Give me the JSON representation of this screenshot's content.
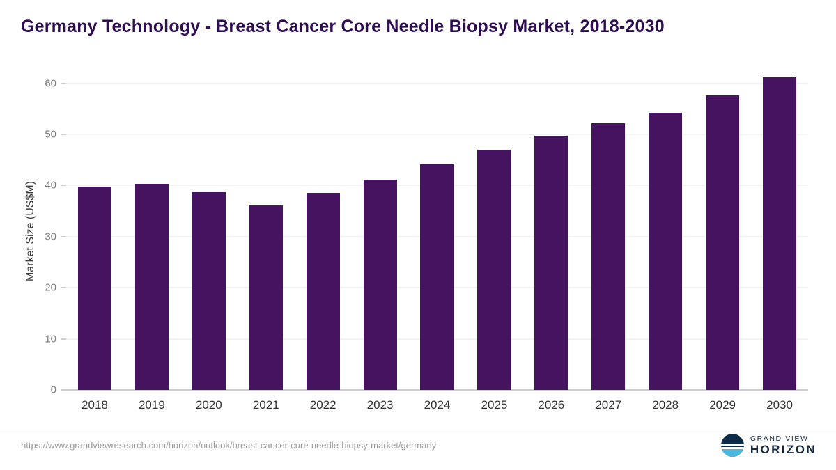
{
  "chart_data": {
    "type": "bar",
    "title": "Germany Technology - Breast Cancer Core Needle Biopsy Market, 2018-2030",
    "categories": [
      "2018",
      "2019",
      "2020",
      "2021",
      "2022",
      "2023",
      "2024",
      "2025",
      "2026",
      "2027",
      "2028",
      "2029",
      "2030"
    ],
    "values": [
      39.8,
      40.4,
      38.7,
      36.1,
      38.6,
      41.2,
      44.1,
      47.0,
      49.7,
      52.2,
      54.3,
      57.6,
      61.2
    ],
    "xlabel": "",
    "ylabel": "Market Size (US$M)",
    "yticks": [
      0,
      10,
      20,
      30,
      40,
      50,
      60
    ],
    "ylim": [
      0,
      62
    ],
    "grid": "horizontal",
    "legend": "none",
    "bar_color": "#451360",
    "title_color": "#2e0d50"
  },
  "footer": {
    "source_url": "https://www.grandviewresearch.com/horizon/outlook/breast-cancer-core-needle-biopsy-market/germany",
    "logo": {
      "line1": "GRAND VIEW",
      "line2": "HORIZON",
      "navy": "#0f2b4a",
      "light_blue": "#4ab9dd"
    }
  }
}
